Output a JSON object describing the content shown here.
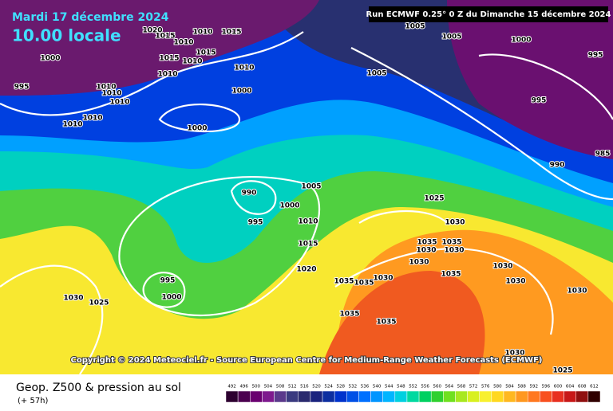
{
  "header": {
    "date": "Mardi 17 décembre 2024",
    "time": "10.00 locale",
    "run": "Run ECMWF 0.25° 0 Z du Dimanche 15 décembre 2024"
  },
  "copyright": "Copyright © 2024 Meteociel.fr - Source European Centre for Medium-Range Weather Forecasts (ECMWF)",
  "legend": {
    "title": "Geop. Z500 & pression au sol",
    "lead": "(+ 57h)",
    "levels": [
      492,
      496,
      500,
      504,
      508,
      512,
      516,
      520,
      524,
      528,
      532,
      536,
      540,
      544,
      548,
      552,
      556,
      560,
      564,
      568,
      572,
      576,
      580,
      584,
      588,
      592,
      596,
      600,
      604,
      608,
      612
    ],
    "colors": [
      "#2d0030",
      "#4b004f",
      "#6a0070",
      "#7e1a8e",
      "#5b3a8c",
      "#3b3b80",
      "#2a2a6e",
      "#1a237e",
      "#0d2fa0",
      "#0033cc",
      "#0050e6",
      "#0070ff",
      "#0095ff",
      "#00b5ff",
      "#00d0e0",
      "#00d9a0",
      "#00d060",
      "#30d030",
      "#70e020",
      "#a8e820",
      "#d8f020",
      "#f8f030",
      "#ffd820",
      "#ffb820",
      "#ff9820",
      "#ff7820",
      "#f85020",
      "#e83020",
      "#c81818",
      "#901010",
      "#300000"
    ]
  },
  "isobar_labels": [
    1020,
    1015,
    1010,
    1010,
    1015,
    1015,
    1015,
    1010,
    1010,
    1000,
    995,
    1010,
    1010,
    1010,
    1010,
    1010,
    1005,
    1005,
    1000,
    995,
    1010,
    1005,
    1000,
    1000,
    995,
    990,
    985,
    990,
    995,
    1000,
    1005,
    1010,
    1015,
    1020,
    1025,
    1030,
    1035,
    1035,
    1030,
    1030,
    1030,
    1035,
    1030,
    1030,
    1030,
    1035,
    1035,
    1030,
    1035,
    1035,
    995,
    1000,
    1030,
    1025,
    1030,
    1025
  ]
}
